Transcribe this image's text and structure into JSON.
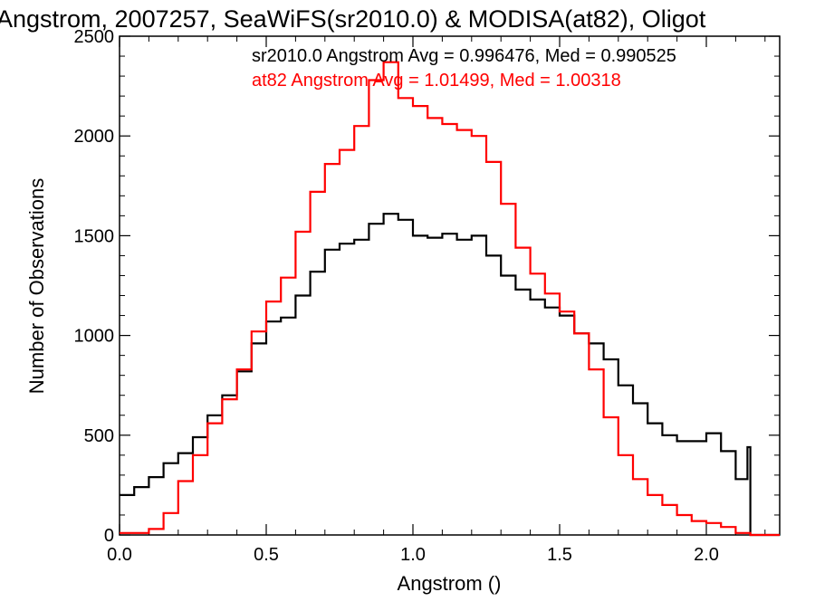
{
  "chart_data": {
    "type": "line",
    "step": true,
    "title": "Angstrom, 2007257, SeaWiFS(sr2010.0) & MODISA(at82), Oligot",
    "xlabel": "Angstrom ()",
    "ylabel": "Number of Observations",
    "xlim": [
      0.0,
      2.25
    ],
    "ylim": [
      0,
      2500
    ],
    "xticks": [
      0.0,
      0.5,
      1.0,
      1.5,
      2.0
    ],
    "xtick_labels": [
      "0.0",
      "0.5",
      "1.0",
      "1.5",
      "2.0"
    ],
    "yticks": [
      0,
      500,
      1000,
      1500,
      2000,
      2500
    ],
    "ytick_labels": [
      "0",
      "500",
      "1000",
      "1500",
      "2000",
      "2500"
    ],
    "grid": false,
    "annotations": [
      "sr2010.0 Angstrom Avg = 0.996476, Med = 0.990525",
      "at82 Angstrom Avg = 1.01499, Med = 1.00318"
    ],
    "series": [
      {
        "color": "#000000",
        "x": [
          0.0,
          0.05,
          0.1,
          0.15,
          0.2,
          0.25,
          0.3,
          0.35,
          0.4,
          0.45,
          0.5,
          0.55,
          0.6,
          0.65,
          0.7,
          0.75,
          0.8,
          0.85,
          0.9,
          0.95,
          1.0,
          1.05,
          1.1,
          1.15,
          1.2,
          1.25,
          1.3,
          1.35,
          1.4,
          1.45,
          1.5,
          1.55,
          1.6,
          1.65,
          1.7,
          1.75,
          1.8,
          1.85,
          1.9,
          1.95,
          2.0,
          2.05,
          2.1,
          2.14,
          2.15,
          2.2,
          2.25
        ],
        "values": [
          200,
          240,
          290,
          360,
          410,
          490,
          600,
          700,
          820,
          960,
          1070,
          1090,
          1200,
          1320,
          1430,
          1460,
          1480,
          1560,
          1610,
          1580,
          1500,
          1490,
          1510,
          1480,
          1500,
          1400,
          1300,
          1230,
          1180,
          1140,
          1100,
          1010,
          960,
          880,
          750,
          660,
          560,
          500,
          470,
          470,
          510,
          420,
          280,
          440,
          0,
          0,
          0
        ]
      },
      {
        "color": "#ff0000",
        "x": [
          0.0,
          0.05,
          0.1,
          0.15,
          0.2,
          0.25,
          0.3,
          0.35,
          0.4,
          0.45,
          0.5,
          0.55,
          0.6,
          0.65,
          0.7,
          0.75,
          0.8,
          0.85,
          0.9,
          0.95,
          1.0,
          1.05,
          1.1,
          1.15,
          1.2,
          1.25,
          1.3,
          1.35,
          1.4,
          1.45,
          1.5,
          1.55,
          1.6,
          1.65,
          1.7,
          1.75,
          1.8,
          1.85,
          1.9,
          1.95,
          2.0,
          2.05,
          2.1,
          2.15,
          2.2,
          2.25
        ],
        "values": [
          10,
          10,
          30,
          110,
          270,
          400,
          560,
          680,
          830,
          1020,
          1170,
          1290,
          1520,
          1720,
          1860,
          1930,
          2050,
          2280,
          2370,
          2190,
          2150,
          2090,
          2060,
          2030,
          2000,
          1870,
          1660,
          1440,
          1310,
          1210,
          1120,
          1010,
          830,
          590,
          400,
          280,
          200,
          150,
          100,
          70,
          60,
          40,
          10,
          0,
          0,
          0
        ]
      }
    ]
  }
}
